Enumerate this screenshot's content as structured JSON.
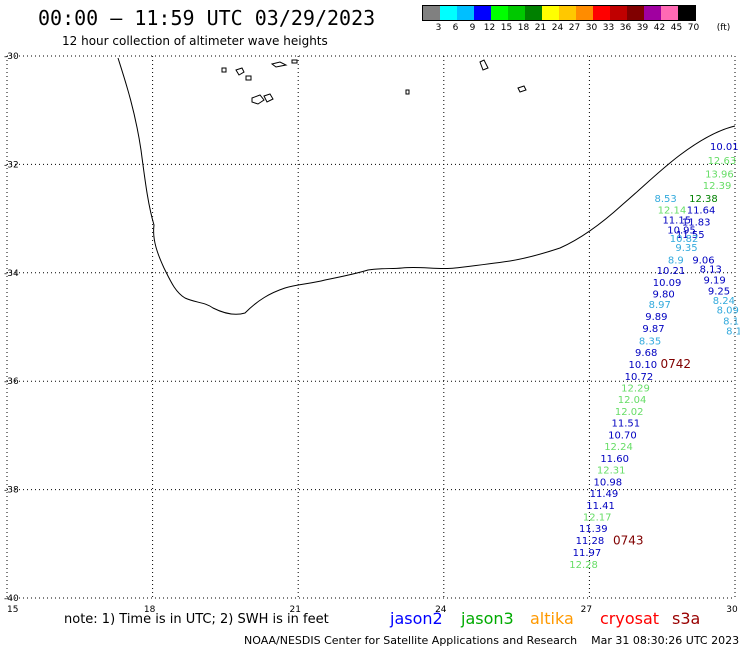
{
  "header": {
    "title": "00:00 – 11:59 UTC 03/29/2023",
    "subtitle": "12 hour collection of altimeter wave heights"
  },
  "legend": {
    "unit": "(ft)",
    "bins": [
      {
        "label": "3",
        "color": "#808080"
      },
      {
        "label": "6",
        "color": "#00ffff"
      },
      {
        "label": "9",
        "color": "#00bfff"
      },
      {
        "label": "12",
        "color": "#0000ff"
      },
      {
        "label": "15",
        "color": "#00ff00"
      },
      {
        "label": "18",
        "color": "#00c800"
      },
      {
        "label": "21",
        "color": "#008000"
      },
      {
        "label": "24",
        "color": "#ffff00"
      },
      {
        "label": "27",
        "color": "#ffc800"
      },
      {
        "label": "30",
        "color": "#ff8c00"
      },
      {
        "label": "33",
        "color": "#ff0000"
      },
      {
        "label": "36",
        "color": "#c00000"
      },
      {
        "label": "39",
        "color": "#800000"
      },
      {
        "label": "42",
        "color": "#a000a0"
      },
      {
        "label": "45",
        "color": "#ff69b4"
      },
      {
        "label": "70",
        "color": "#000000"
      }
    ]
  },
  "axes": {
    "lon_min": 15,
    "lon_max": 30,
    "lat_min": -40,
    "lat_max": -30,
    "lon_ticks": [
      "15",
      "18",
      "21",
      "24",
      "27",
      "30"
    ],
    "lat_ticks": [
      "-30",
      "-32",
      "-34",
      "-36",
      "-38",
      "-40"
    ],
    "grid": "dotted"
  },
  "wave_data": [
    {
      "v": "10.01",
      "lon": 29.78,
      "lat": -31.66,
      "c": "#0000c0"
    },
    {
      "v": "12.63",
      "lon": 29.73,
      "lat": -31.92,
      "c": "#66dd66"
    },
    {
      "v": "13.96",
      "lon": 29.68,
      "lat": -32.17,
      "c": "#66dd66"
    },
    {
      "v": "12.39",
      "lon": 29.63,
      "lat": -32.38,
      "c": "#66dd66"
    },
    {
      "v": "8.53",
      "lon": 28.57,
      "lat": -32.62,
      "c": "#33aadd"
    },
    {
      "v": "12.38",
      "lon": 29.35,
      "lat": -32.62,
      "c": "#008000"
    },
    {
      "v": "12.14",
      "lon": 28.7,
      "lat": -32.83,
      "c": "#66dd66"
    },
    {
      "v": "11.64",
      "lon": 29.3,
      "lat": -32.83,
      "c": "#0000c0"
    },
    {
      "v": "11.15",
      "lon": 28.8,
      "lat": -33.02,
      "c": "#0000c0"
    },
    {
      "v": "11.83",
      "lon": 29.2,
      "lat": -33.05,
      "c": "#0000c0"
    },
    {
      "v": "10.95",
      "lon": 28.9,
      "lat": -33.2,
      "c": "#0000c0"
    },
    {
      "v": "11.55",
      "lon": 29.08,
      "lat": -33.28,
      "c": "#0000c0"
    },
    {
      "v": "10.82",
      "lon": 28.95,
      "lat": -33.36,
      "c": "#33aadd"
    },
    {
      "v": "9.35",
      "lon": 29.0,
      "lat": -33.52,
      "c": "#33aadd"
    },
    {
      "v": "9.06",
      "lon": 29.35,
      "lat": -33.75,
      "c": "#0000c0"
    },
    {
      "v": "8.9",
      "lon": 28.78,
      "lat": -33.75,
      "c": "#33aadd"
    },
    {
      "v": "10.21",
      "lon": 28.68,
      "lat": -33.95,
      "c": "#0000c0"
    },
    {
      "v": "8.13",
      "lon": 29.5,
      "lat": -33.92,
      "c": "#0000c0"
    },
    {
      "v": "10.09",
      "lon": 28.6,
      "lat": -34.17,
      "c": "#0000c0"
    },
    {
      "v": "9.19",
      "lon": 29.58,
      "lat": -34.12,
      "c": "#0000c0"
    },
    {
      "v": "9.25",
      "lon": 29.67,
      "lat": -34.33,
      "c": "#0000c0"
    },
    {
      "v": "9.80",
      "lon": 28.53,
      "lat": -34.38,
      "c": "#0000c0"
    },
    {
      "v": "8.24",
      "lon": 29.77,
      "lat": -34.5,
      "c": "#33aadd"
    },
    {
      "v": "8.97",
      "lon": 28.45,
      "lat": -34.58,
      "c": "#33aadd"
    },
    {
      "v": "8.09",
      "lon": 29.85,
      "lat": -34.68,
      "c": "#33aadd"
    },
    {
      "v": "9.89",
      "lon": 28.38,
      "lat": -34.8,
      "c": "#0000c0"
    },
    {
      "v": "8.1",
      "lon": 29.92,
      "lat": -34.88,
      "c": "#33aadd"
    },
    {
      "v": "8.1",
      "lon": 29.98,
      "lat": -35.06,
      "c": "#33aadd"
    },
    {
      "v": "9.87",
      "lon": 28.32,
      "lat": -35.02,
      "c": "#0000c0"
    },
    {
      "v": "8.35",
      "lon": 28.25,
      "lat": -35.25,
      "c": "#33aadd"
    },
    {
      "v": "9.68",
      "lon": 28.17,
      "lat": -35.46,
      "c": "#0000c0"
    },
    {
      "v": "10.10",
      "lon": 28.1,
      "lat": -35.68,
      "c": "#0000c0"
    },
    {
      "v": "10.72",
      "lon": 28.02,
      "lat": -35.9,
      "c": "#0000c0"
    },
    {
      "v": "12.29",
      "lon": 27.95,
      "lat": -36.12,
      "c": "#66dd66"
    },
    {
      "v": "12.04",
      "lon": 27.88,
      "lat": -36.33,
      "c": "#66dd66"
    },
    {
      "v": "12.02",
      "lon": 27.82,
      "lat": -36.55,
      "c": "#66dd66"
    },
    {
      "v": "11.51",
      "lon": 27.75,
      "lat": -36.76,
      "c": "#0000c0"
    },
    {
      "v": "10.70",
      "lon": 27.68,
      "lat": -36.98,
      "c": "#0000c0"
    },
    {
      "v": "12.24",
      "lon": 27.6,
      "lat": -37.2,
      "c": "#66dd66"
    },
    {
      "v": "11.60",
      "lon": 27.52,
      "lat": -37.42,
      "c": "#0000c0"
    },
    {
      "v": "12.31",
      "lon": 27.45,
      "lat": -37.63,
      "c": "#66dd66"
    },
    {
      "v": "10.98",
      "lon": 27.38,
      "lat": -37.85,
      "c": "#0000c0"
    },
    {
      "v": "11.49",
      "lon": 27.3,
      "lat": -38.06,
      "c": "#0000c0"
    },
    {
      "v": "11.41",
      "lon": 27.23,
      "lat": -38.28,
      "c": "#0000c0"
    },
    {
      "v": "12.17",
      "lon": 27.16,
      "lat": -38.5,
      "c": "#66dd66"
    },
    {
      "v": "11.39",
      "lon": 27.08,
      "lat": -38.71,
      "c": "#0000c0"
    },
    {
      "v": "11.28",
      "lon": 27.01,
      "lat": -38.93,
      "c": "#0000c0"
    },
    {
      "v": "11.97",
      "lon": 26.95,
      "lat": -39.15,
      "c": "#0000c0"
    },
    {
      "v": "12.28",
      "lon": 26.88,
      "lat": -39.37,
      "c": "#66dd66"
    }
  ],
  "time_labels": [
    {
      "v": "0742",
      "lon": 28.78,
      "lat": -35.68
    },
    {
      "v": "0743",
      "lon": 27.8,
      "lat": -38.94
    }
  ],
  "footer": {
    "note": "note:  1) Time is in UTC;  2) SWH is in feet",
    "satellites": [
      {
        "name": "jason2",
        "color": "#0000ff"
      },
      {
        "name": "jason3",
        "color": "#00aa00"
      },
      {
        "name": "altika",
        "color": "#ff9900"
      },
      {
        "name": "cryosat",
        "color": "#ff0000"
      },
      {
        "name": "s3a",
        "color": "#990000"
      }
    ],
    "credit": "NOAA/NESDIS Center for Satellite Applications and Research",
    "timestamp": "Mar 31 08:30:26 UTC 2023"
  }
}
